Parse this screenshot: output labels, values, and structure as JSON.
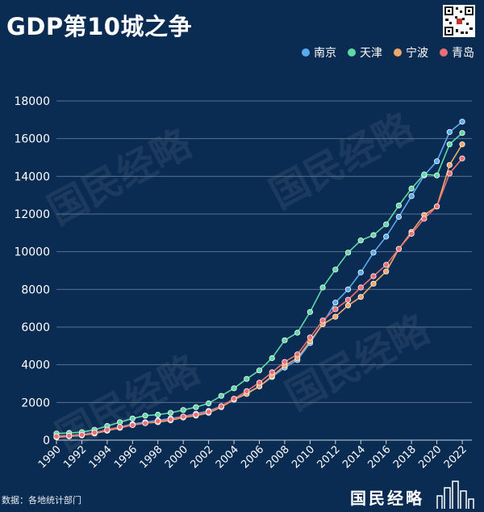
{
  "header": {
    "title": "GDP第10城之争"
  },
  "footer": {
    "source": "数据：各地统计部门",
    "logo": "国民经略"
  },
  "watermark_text": "国民经略",
  "chart_data": {
    "type": "line",
    "title": "GDP第10城之争",
    "xlabel": "",
    "ylabel": "",
    "ylim": [
      0,
      18000
    ],
    "yticks": [
      0,
      2000,
      4000,
      6000,
      8000,
      10000,
      12000,
      14000,
      16000,
      18000
    ],
    "xtick_labels": [
      "1990",
      "1992",
      "1994",
      "1996",
      "1998",
      "2000",
      "2002",
      "2004",
      "2006",
      "2008",
      "2010",
      "2012",
      "2014",
      "2016",
      "2018",
      "2020",
      "2022"
    ],
    "x": [
      1990,
      1991,
      1992,
      1993,
      1994,
      1995,
      1996,
      1997,
      1998,
      1999,
      2000,
      2001,
      2002,
      2003,
      2004,
      2005,
      2006,
      2007,
      2008,
      2009,
      2010,
      2011,
      2012,
      2013,
      2014,
      2015,
      2016,
      2017,
      2018,
      2019,
      2020,
      2021,
      2022
    ],
    "legend_position": "top-right",
    "grid": true,
    "series": [
      {
        "name": "南京",
        "color": "#5aaaf0",
        "values": [
          200,
          250,
          300,
          400,
          550,
          700,
          850,
          950,
          1050,
          1150,
          1250,
          1400,
          1550,
          1800,
          2150,
          2500,
          2850,
          3350,
          3850,
          4250,
          5150,
          6200,
          7300,
          8000,
          8900,
          9950,
          10800,
          11850,
          12950,
          14050,
          14800,
          16350,
          16900
        ]
      },
      {
        "name": "天津",
        "color": "#5fd8a6",
        "values": [
          350,
          380,
          420,
          550,
          750,
          950,
          1150,
          1300,
          1350,
          1450,
          1600,
          1750,
          1950,
          2350,
          2750,
          3250,
          3700,
          4350,
          5300,
          5700,
          6800,
          8100,
          9050,
          9950,
          10600,
          10880,
          11450,
          12450,
          13350,
          14100,
          14050,
          15700,
          16300
        ]
      },
      {
        "name": "宁波",
        "color": "#f0a868",
        "values": [
          150,
          200,
          250,
          350,
          500,
          650,
          800,
          900,
          950,
          1050,
          1200,
          1300,
          1450,
          1750,
          2150,
          2450,
          2850,
          3400,
          3950,
          4350,
          5250,
          6150,
          6550,
          7150,
          7600,
          8300,
          8950,
          10150,
          11050,
          11950,
          12400,
          14600,
          15700
        ]
      },
      {
        "name": "青岛",
        "color": "#ec6f78",
        "values": [
          200,
          230,
          280,
          400,
          550,
          700,
          800,
          900,
          1000,
          1100,
          1250,
          1350,
          1500,
          1800,
          2200,
          2600,
          3050,
          3600,
          4150,
          4550,
          5450,
          6350,
          6950,
          7450,
          8100,
          8700,
          9300,
          10150,
          10950,
          11750,
          12400,
          14150,
          14950
        ]
      }
    ]
  }
}
